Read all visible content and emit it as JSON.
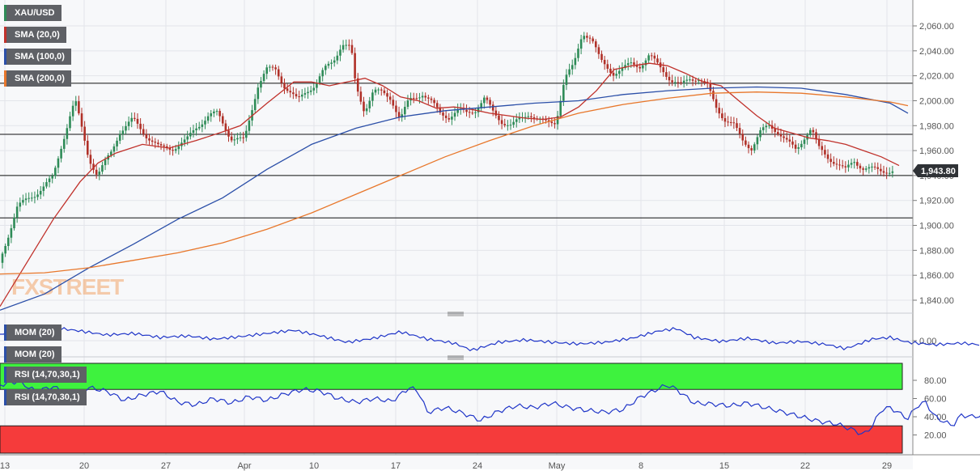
{
  "chart_data": {
    "type": "candlestick",
    "instrument": "XAU/USD",
    "last_price": "1,943.80",
    "price_ticks": [
      "2,060.00",
      "2,040.00",
      "2,020.00",
      "2,000.00",
      "1,980.00",
      "1,960.00",
      "1,940.00",
      "1,920.00",
      "1,900.00",
      "1,880.00",
      "1,860.00",
      "1,840.00"
    ],
    "price_tick_values": [
      2060,
      2040,
      2020,
      2000,
      1980,
      1960,
      1940,
      1920,
      1900,
      1880,
      1860,
      1840
    ],
    "ylim": [
      1830,
      2080
    ],
    "x_ticks": [
      "13",
      "20",
      "27",
      "Apr",
      "10",
      "17",
      "24",
      "May",
      "8",
      "15",
      "22",
      "29"
    ],
    "horizontal_levels": [
      2014,
      1973,
      1940,
      1906
    ],
    "close_path": [
      [
        0,
        1870
      ],
      [
        20,
        1915
      ],
      [
        40,
        1925
      ],
      [
        60,
        1938
      ],
      [
        70,
        1965
      ],
      [
        80,
        1990
      ],
      [
        85,
        2000
      ],
      [
        90,
        1985
      ],
      [
        100,
        1955
      ],
      [
        110,
        1940
      ],
      [
        125,
        1958
      ],
      [
        135,
        1975
      ],
      [
        150,
        1985
      ],
      [
        165,
        1972
      ],
      [
        180,
        1962
      ],
      [
        195,
        1962
      ],
      [
        210,
        1968
      ],
      [
        220,
        1978
      ],
      [
        235,
        1988
      ],
      [
        245,
        1990
      ],
      [
        260,
        1970
      ],
      [
        275,
        1968
      ],
      [
        290,
        2012
      ],
      [
        300,
        2025
      ],
      [
        310,
        2025
      ],
      [
        320,
        2012
      ],
      [
        335,
        2000
      ],
      [
        345,
        2008
      ],
      [
        355,
        2013
      ],
      [
        365,
        2025
      ],
      [
        375,
        2032
      ],
      [
        385,
        2046
      ],
      [
        395,
        2042
      ],
      [
        400,
        2012
      ],
      [
        410,
        1992
      ],
      [
        420,
        2008
      ],
      [
        430,
        2006
      ],
      [
        440,
        2002
      ],
      [
        450,
        1985
      ],
      [
        460,
        2000
      ],
      [
        475,
        2006
      ],
      [
        485,
        1999
      ],
      [
        495,
        1990
      ],
      [
        505,
        1987
      ],
      [
        515,
        1992
      ],
      [
        525,
        1990
      ],
      [
        535,
        1993
      ],
      [
        545,
        2002
      ],
      [
        555,
        1990
      ],
      [
        565,
        1983
      ],
      [
        575,
        1980
      ],
      [
        585,
        1985
      ],
      [
        595,
        1990
      ],
      [
        605,
        1985
      ],
      [
        615,
        1982
      ],
      [
        625,
        1983
      ],
      [
        635,
        2018
      ],
      [
        645,
        2028
      ],
      [
        655,
        2055
      ],
      [
        665,
        2050
      ],
      [
        675,
        2032
      ],
      [
        690,
        2022
      ],
      [
        700,
        2025
      ],
      [
        710,
        2030
      ],
      [
        720,
        2028
      ],
      [
        730,
        2036
      ],
      [
        745,
        2025
      ],
      [
        755,
        2016
      ],
      [
        765,
        2012
      ],
      [
        775,
        2018
      ],
      [
        785,
        2018
      ],
      [
        795,
        2012
      ],
      [
        805,
        1995
      ],
      [
        815,
        1985
      ],
      [
        825,
        1980
      ],
      [
        835,
        1968
      ],
      [
        845,
        1962
      ],
      [
        855,
        1975
      ],
      [
        865,
        1980
      ],
      [
        875,
        1975
      ],
      [
        885,
        1967
      ],
      [
        895,
        1960
      ],
      [
        905,
        1972
      ],
      [
        912,
        1978
      ],
      [
        920,
        1962
      ],
      [
        930,
        1955
      ],
      [
        940,
        1950
      ],
      [
        950,
        1944
      ],
      [
        960,
        1952
      ],
      [
        970,
        1946
      ],
      [
        980,
        1945
      ],
      [
        990,
        1944
      ],
      [
        1000,
        1943.8
      ]
    ],
    "series": [
      {
        "name": "SMA (20,0)",
        "color": "#c0312b",
        "values": [
          [
            0,
            1835
          ],
          [
            30,
            1870
          ],
          [
            60,
            1905
          ],
          [
            90,
            1935
          ],
          [
            110,
            1950
          ],
          [
            130,
            1958
          ],
          [
            160,
            1965
          ],
          [
            190,
            1962
          ],
          [
            220,
            1968
          ],
          [
            250,
            1975
          ],
          [
            270,
            1980
          ],
          [
            300,
            1998
          ],
          [
            330,
            2015
          ],
          [
            350,
            2015
          ],
          [
            370,
            2012
          ],
          [
            390,
            2015
          ],
          [
            410,
            2018
          ],
          [
            430,
            2012
          ],
          [
            450,
            2003
          ],
          [
            470,
            2000
          ],
          [
            490,
            1994
          ],
          [
            510,
            1995
          ],
          [
            530,
            1993
          ],
          [
            550,
            1990
          ],
          [
            570,
            1988
          ],
          [
            590,
            1986
          ],
          [
            610,
            1985
          ],
          [
            630,
            1987
          ],
          [
            650,
            1995
          ],
          [
            670,
            2008
          ],
          [
            690,
            2025
          ],
          [
            710,
            2028
          ],
          [
            730,
            2030
          ],
          [
            750,
            2028
          ],
          [
            770,
            2022
          ],
          [
            790,
            2015
          ],
          [
            810,
            2012
          ],
          [
            830,
            2000
          ],
          [
            850,
            1988
          ],
          [
            870,
            1978
          ],
          [
            890,
            1974
          ],
          [
            910,
            1970
          ],
          [
            930,
            1968
          ],
          [
            950,
            1965
          ],
          [
            970,
            1960
          ],
          [
            990,
            1955
          ],
          [
            1010,
            1948
          ]
        ]
      },
      {
        "name": "SMA (100,0)",
        "color": "#2b4fa8",
        "values": [
          [
            0,
            1832
          ],
          [
            50,
            1845
          ],
          [
            100,
            1866
          ],
          [
            150,
            1885
          ],
          [
            200,
            1905
          ],
          [
            250,
            1922
          ],
          [
            300,
            1945
          ],
          [
            350,
            1965
          ],
          [
            400,
            1978
          ],
          [
            450,
            1987
          ],
          [
            500,
            1992
          ],
          [
            550,
            1995
          ],
          [
            600,
            1998
          ],
          [
            650,
            2000
          ],
          [
            700,
            2005
          ],
          [
            750,
            2008
          ],
          [
            800,
            2010
          ],
          [
            850,
            2011
          ],
          [
            900,
            2010
          ],
          [
            950,
            2005
          ],
          [
            1000,
            1998
          ],
          [
            1020,
            1990
          ]
        ]
      },
      {
        "name": "SMA (200,0)",
        "color": "#e8772b",
        "values": [
          [
            0,
            1861
          ],
          [
            50,
            1862
          ],
          [
            100,
            1866
          ],
          [
            150,
            1872
          ],
          [
            200,
            1878
          ],
          [
            250,
            1886
          ],
          [
            300,
            1897
          ],
          [
            350,
            1910
          ],
          [
            400,
            1925
          ],
          [
            450,
            1940
          ],
          [
            500,
            1955
          ],
          [
            550,
            1968
          ],
          [
            600,
            1980
          ],
          [
            650,
            1990
          ],
          [
            700,
            1997
          ],
          [
            750,
            2002
          ],
          [
            800,
            2006
          ],
          [
            850,
            2007
          ],
          [
            900,
            2006
          ],
          [
            950,
            2003
          ],
          [
            1000,
            1999
          ],
          [
            1020,
            1996
          ]
        ]
      }
    ],
    "indicators": [
      {
        "name": "MOM (20)",
        "ticks": [
          "0.00"
        ],
        "zero_value": 0,
        "values": [
          [
            0,
            0.8
          ],
          [
            30,
            1.4
          ],
          [
            60,
            1.6
          ],
          [
            90,
            1.2
          ],
          [
            120,
            0.7
          ],
          [
            150,
            0.9
          ],
          [
            180,
            0.4
          ],
          [
            210,
            0.6
          ],
          [
            240,
            0.2
          ],
          [
            270,
            0.5
          ],
          [
            300,
            0.9
          ],
          [
            330,
            1.3
          ],
          [
            360,
            0.6
          ],
          [
            390,
            -0.2
          ],
          [
            420,
            0.3
          ],
          [
            450,
            1.1
          ],
          [
            480,
            0.2
          ],
          [
            510,
            -0.3
          ],
          [
            530,
            -1.2
          ],
          [
            560,
            -0.2
          ],
          [
            590,
            0.1
          ],
          [
            620,
            -0.2
          ],
          [
            650,
            -0.4
          ],
          [
            680,
            -0.2
          ],
          [
            710,
            0.3
          ],
          [
            740,
            1.2
          ],
          [
            760,
            1.5
          ],
          [
            780,
            0.4
          ],
          [
            810,
            -0.1
          ],
          [
            840,
            0.3
          ],
          [
            870,
            -0.3
          ],
          [
            900,
            -0.1
          ],
          [
            930,
            -0.5
          ],
          [
            950,
            -1.0
          ],
          [
            980,
            0.2
          ],
          [
            1000,
            0.4
          ],
          [
            1020,
            -0.2
          ],
          [
            1050,
            -0.5
          ],
          [
            1080,
            -0.3
          ],
          [
            1100,
            -0.5
          ]
        ]
      },
      {
        "name": "RSI (14,70,30,1)",
        "ticks": [
          "80.00",
          "60.00",
          "40.00",
          "20.00"
        ],
        "tick_values": [
          80,
          60,
          40,
          20
        ],
        "ylim": [
          0,
          100
        ],
        "overbought": 70,
        "oversold": 30,
        "overbought_color": "#3ef23e",
        "oversold_color": "#f53b3b",
        "values": [
          [
            0,
            75
          ],
          [
            20,
            79
          ],
          [
            40,
            68
          ],
          [
            60,
            73
          ],
          [
            80,
            62
          ],
          [
            100,
            72
          ],
          [
            120,
            68
          ],
          [
            140,
            58
          ],
          [
            160,
            64
          ],
          [
            180,
            68
          ],
          [
            200,
            56
          ],
          [
            220,
            53
          ],
          [
            240,
            60
          ],
          [
            260,
            55
          ],
          [
            280,
            62
          ],
          [
            300,
            58
          ],
          [
            320,
            65
          ],
          [
            340,
            70
          ],
          [
            360,
            68
          ],
          [
            380,
            60
          ],
          [
            400,
            56
          ],
          [
            420,
            60
          ],
          [
            440,
            57
          ],
          [
            460,
            72
          ],
          [
            470,
            68
          ],
          [
            480,
            45
          ],
          [
            500,
            50
          ],
          [
            520,
            44
          ],
          [
            540,
            36
          ],
          [
            560,
            46
          ],
          [
            580,
            52
          ],
          [
            600,
            50
          ],
          [
            620,
            55
          ],
          [
            640,
            50
          ],
          [
            660,
            47
          ],
          [
            680,
            45
          ],
          [
            700,
            48
          ],
          [
            720,
            62
          ],
          [
            740,
            71
          ],
          [
            750,
            75
          ],
          [
            760,
            70
          ],
          [
            780,
            55
          ],
          [
            800,
            54
          ],
          [
            820,
            52
          ],
          [
            840,
            55
          ],
          [
            860,
            50
          ],
          [
            880,
            45
          ],
          [
            900,
            40
          ],
          [
            920,
            35
          ],
          [
            940,
            32
          ],
          [
            960,
            25
          ],
          [
            970,
            20
          ],
          [
            980,
            30
          ],
          [
            990,
            48
          ],
          [
            1000,
            50
          ],
          [
            1020,
            38
          ],
          [
            1030,
            52
          ],
          [
            1040,
            56
          ],
          [
            1050,
            40
          ],
          [
            1060,
            35
          ],
          [
            1070,
            30
          ],
          [
            1080,
            42
          ],
          [
            1090,
            40
          ],
          [
            1110,
            42
          ]
        ]
      }
    ],
    "watermark": "FXSTREET",
    "grid": true
  }
}
